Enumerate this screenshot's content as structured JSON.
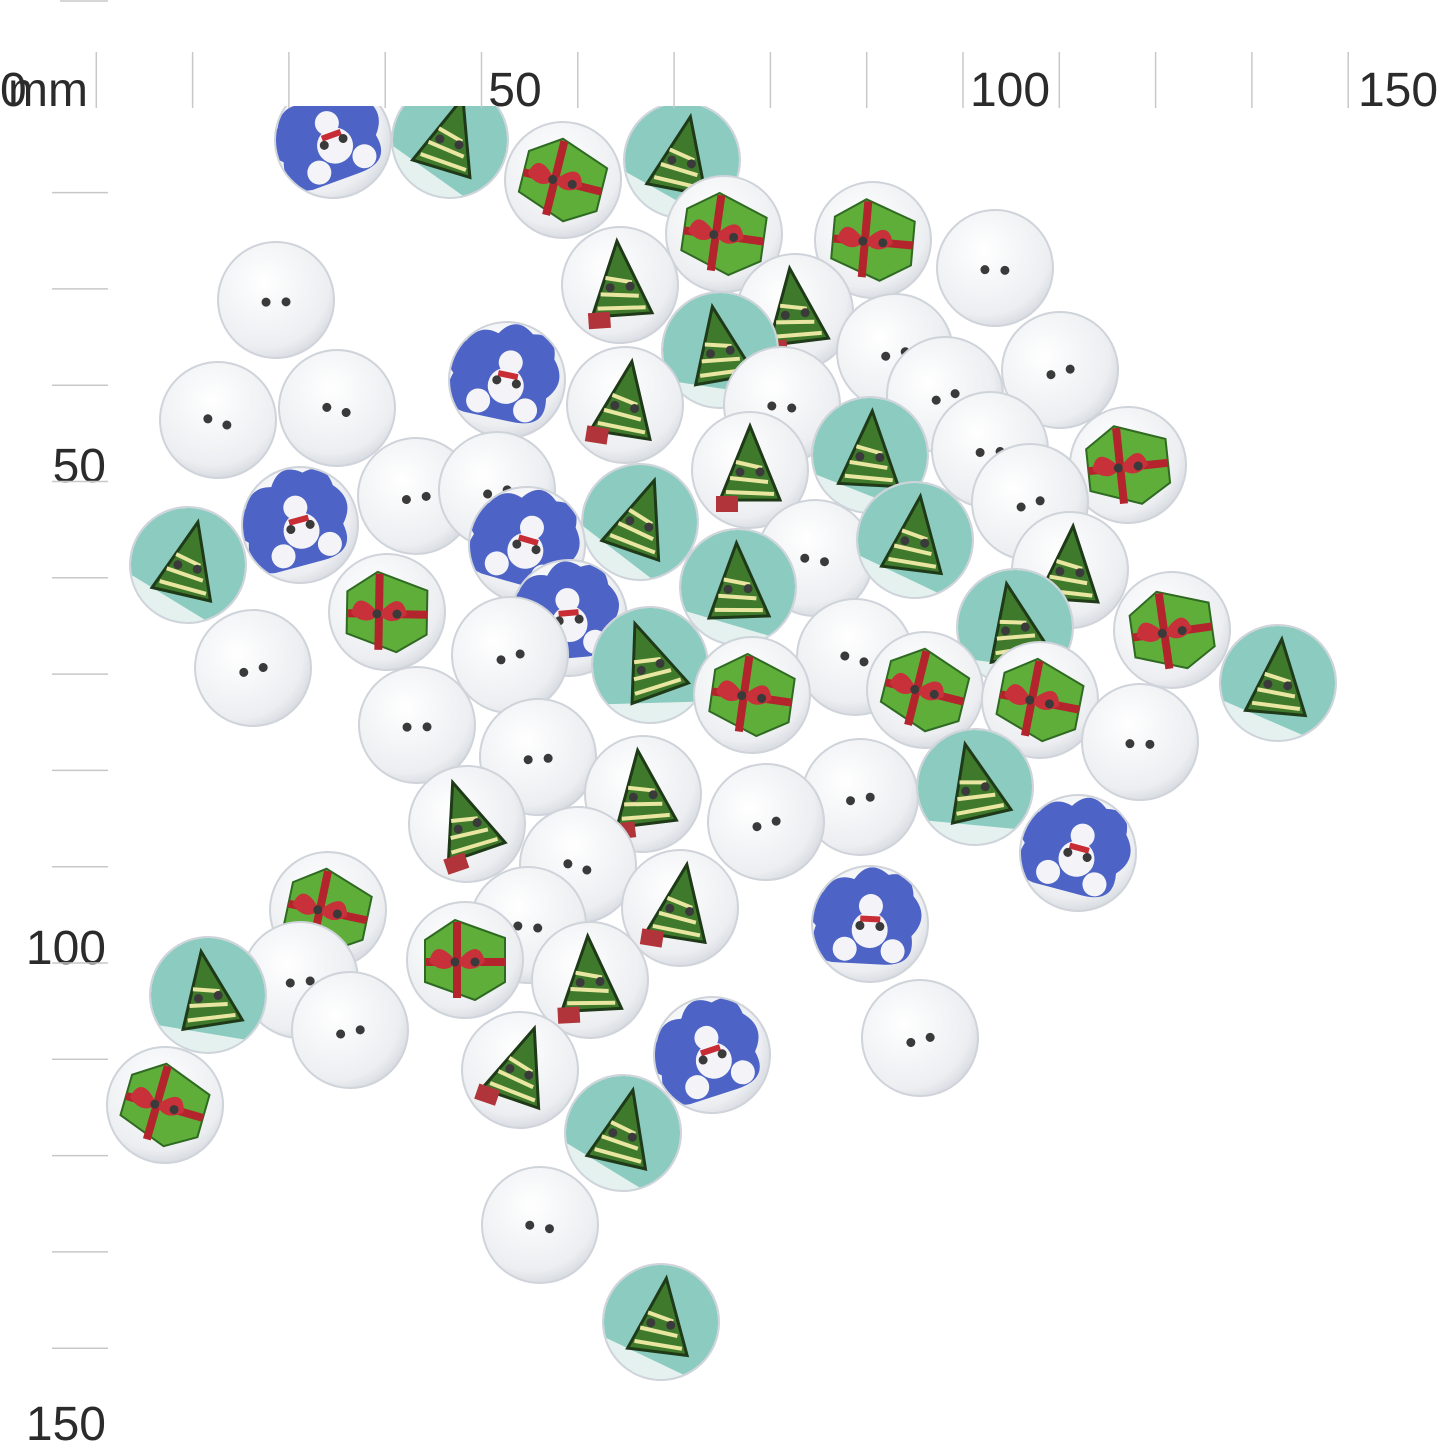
{
  "ruler": {
    "origin": "0",
    "unit": "mm",
    "x_labels": [
      "50",
      "100",
      "150"
    ],
    "y_labels": [
      "50",
      "100",
      "150"
    ]
  }
}
